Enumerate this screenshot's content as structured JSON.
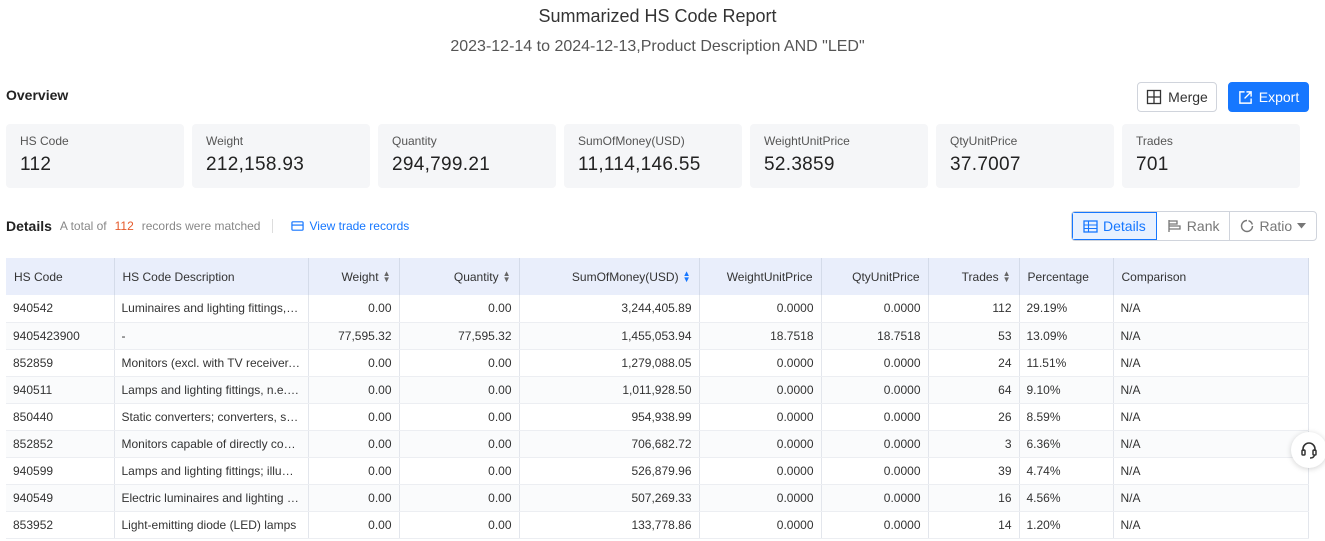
{
  "report": {
    "title": "Summarized HS Code Report",
    "subtitle": "2023-12-14 to 2024-12-13,Product Description AND \"LED\""
  },
  "overview": {
    "label": "Overview",
    "merge_label": "Merge",
    "export_label": "Export",
    "cards": [
      {
        "k": "HS Code",
        "v": "112"
      },
      {
        "k": "Weight",
        "v": "212,158.93"
      },
      {
        "k": "Quantity",
        "v": "294,799.21"
      },
      {
        "k": "SumOfMoney(USD)",
        "v": "11,114,146.55"
      },
      {
        "k": "WeightUnitPrice",
        "v": "52.3859"
      },
      {
        "k": "QtyUnitPrice",
        "v": "37.7007"
      },
      {
        "k": "Trades",
        "v": "701"
      }
    ]
  },
  "details": {
    "label": "Details",
    "total_prefix": "A total of",
    "count": "112",
    "total_suffix": "records were matched",
    "view_records": "View trade records",
    "views": {
      "details": "Details",
      "rank": "Rank",
      "ratio": "Ratio"
    }
  },
  "table": {
    "headers": [
      "HS Code",
      "HS Code Description",
      "Weight",
      "Quantity",
      "SumOfMoney(USD)",
      "WeightUnitPrice",
      "QtyUnitPrice",
      "Trades",
      "Percentage",
      "Comparison"
    ],
    "rows": [
      [
        "940542",
        "Luminaires and lighting fittings, s...",
        "0.00",
        "0.00",
        "3,244,405.89",
        "0.0000",
        "0.0000",
        "112",
        "29.19%",
        "N/A"
      ],
      [
        "9405423900",
        "-",
        "77,595.32",
        "77,595.32",
        "1,455,053.94",
        "18.7518",
        "18.7518",
        "53",
        "13.09%",
        "N/A"
      ],
      [
        "852859",
        "Monitors (excl. with TV receiver, C...",
        "0.00",
        "0.00",
        "1,279,088.05",
        "0.0000",
        "0.0000",
        "24",
        "11.51%",
        "N/A"
      ],
      [
        "940511",
        "Lamps and lighting fittings, n.e.s; ...",
        "0.00",
        "0.00",
        "1,011,928.50",
        "0.0000",
        "0.0000",
        "64",
        "9.10%",
        "N/A"
      ],
      [
        "850440",
        "Static converters; converters, stat...",
        "0.00",
        "0.00",
        "954,938.99",
        "0.0000",
        "0.0000",
        "26",
        "8.59%",
        "N/A"
      ],
      [
        "852852",
        "Monitors capable of directly conn...",
        "0.00",
        "0.00",
        "706,682.72",
        "0.0000",
        "0.0000",
        "3",
        "6.36%",
        "N/A"
      ],
      [
        "940599",
        "Lamps and lighting fittings; illumi...",
        "0.00",
        "0.00",
        "526,879.96",
        "0.0000",
        "0.0000",
        "39",
        "4.74%",
        "N/A"
      ],
      [
        "940549",
        "Electric luminaires and lighting fix...",
        "0.00",
        "0.00",
        "507,269.33",
        "0.0000",
        "0.0000",
        "16",
        "4.56%",
        "N/A"
      ],
      [
        "853952",
        "Light-emitting diode (LED) lamps",
        "0.00",
        "0.00",
        "133,778.86",
        "0.0000",
        "0.0000",
        "14",
        "1.20%",
        "N/A"
      ]
    ]
  },
  "icons": {
    "merge": "merge-icon",
    "export": "export-icon",
    "view_records": "records-icon",
    "details": "grid-icon",
    "rank": "rank-icon",
    "ratio": "ratio-icon",
    "support": "headset-icon"
  },
  "colors": {
    "accent": "#1677ff",
    "count": "#e55a2b",
    "header_bg": "#e9eefb"
  }
}
